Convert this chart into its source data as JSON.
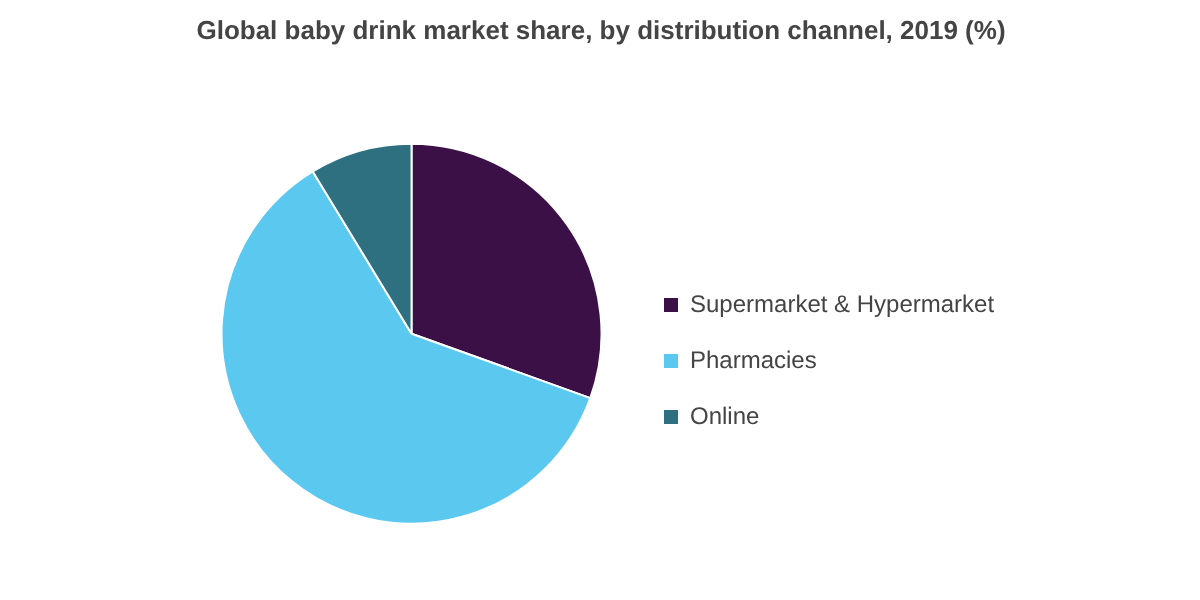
{
  "chart_data": {
    "type": "pie",
    "title": "Global baby drink market share, by distribution channel, 2019 (%)",
    "categories": [
      "Supermarket & Hypermarket",
      "Pharmacies",
      "Online"
    ],
    "values": [
      30.5,
      60.8,
      8.7
    ],
    "colors": [
      "#3a1047",
      "#5bc8f0",
      "#2e6f80"
    ],
    "legend": "right"
  }
}
